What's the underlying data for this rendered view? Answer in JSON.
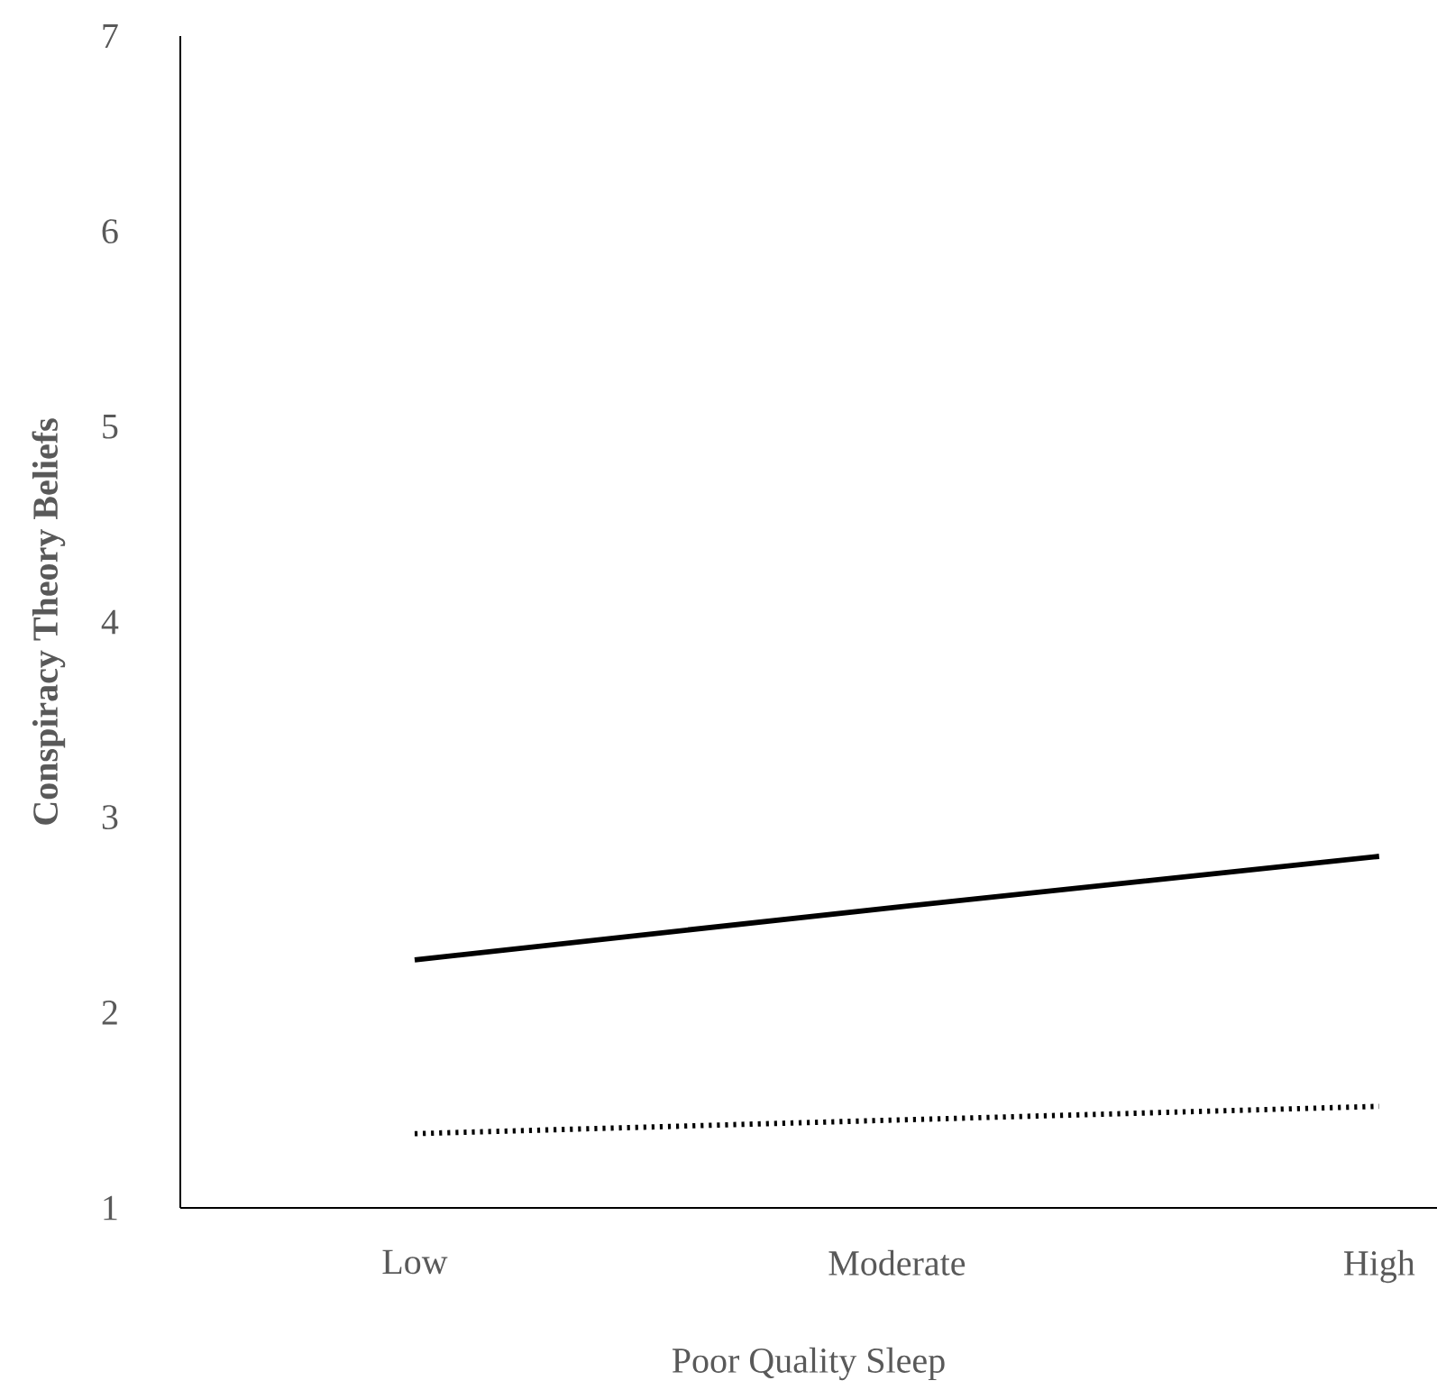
{
  "chart_data": {
    "type": "line",
    "xlabel": "Poor Quality Sleep",
    "ylabel": "Conspiracy Theory Beliefs",
    "categories": [
      "Low",
      "Moderate",
      "High"
    ],
    "series": [
      {
        "color": "#000000",
        "line_style": "solid",
        "values": [
          2.27,
          2.54,
          2.8
        ]
      },
      {
        "color": "#000000",
        "line_style": "dotted",
        "values": [
          1.38,
          1.45,
          1.52
        ]
      }
    ],
    "ylim": [
      1,
      7
    ],
    "yticks": [
      1,
      2,
      3,
      4,
      5,
      6,
      7
    ],
    "grid": false,
    "marker": "none"
  }
}
